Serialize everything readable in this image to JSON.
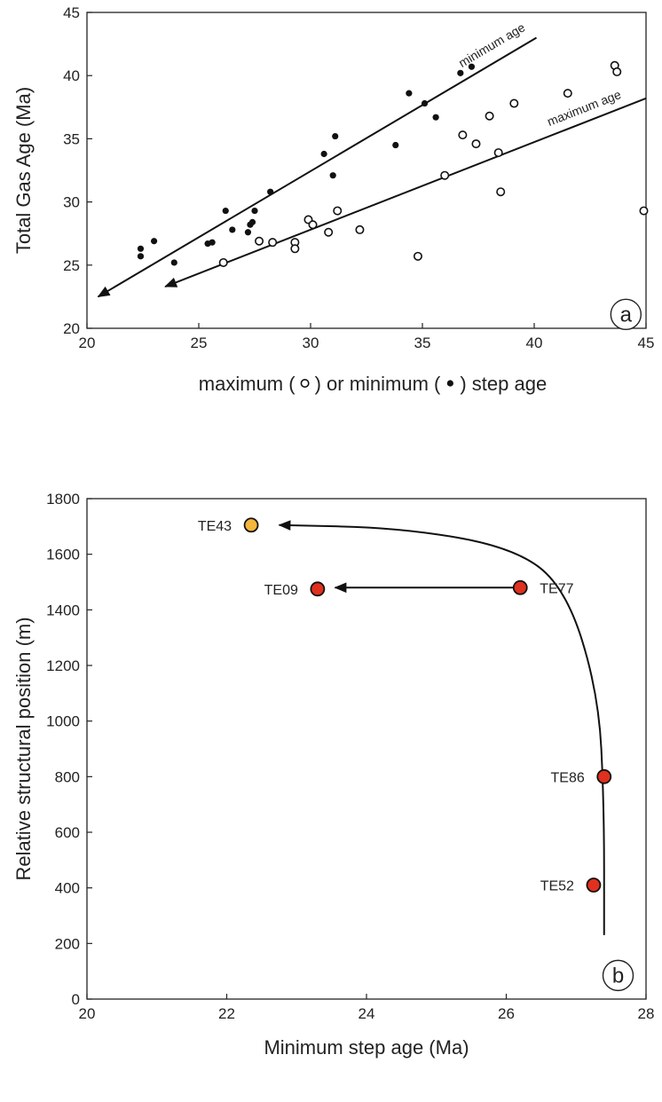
{
  "chart_data": [
    {
      "type": "scatter",
      "panel": "a",
      "xlabel_parts": [
        "maximum (",
        ") or minimum (",
        ") step age"
      ],
      "ylabel": "Total Gas Age (Ma)",
      "xlim": [
        20,
        45
      ],
      "ylim": [
        20,
        45
      ],
      "xticks": [
        20,
        25,
        30,
        35,
        40,
        45
      ],
      "yticks": [
        20,
        25,
        30,
        35,
        40,
        45
      ],
      "grid": false,
      "series": [
        {
          "marker": "filled-circle",
          "points": [
            [
              22.4,
              26.3
            ],
            [
              22.4,
              25.7
            ],
            [
              23.0,
              26.9
            ],
            [
              23.9,
              25.2
            ],
            [
              25.4,
              26.7
            ],
            [
              25.6,
              26.8
            ],
            [
              26.2,
              29.3
            ],
            [
              26.5,
              27.8
            ],
            [
              27.2,
              27.6
            ],
            [
              27.3,
              28.2
            ],
            [
              27.4,
              28.4
            ],
            [
              27.5,
              29.3
            ],
            [
              28.2,
              30.8
            ],
            [
              30.6,
              33.8
            ],
            [
              31.0,
              32.1
            ],
            [
              31.1,
              35.2
            ],
            [
              33.8,
              34.5
            ],
            [
              34.4,
              38.6
            ],
            [
              35.1,
              37.8
            ],
            [
              35.6,
              36.7
            ],
            [
              36.7,
              40.2
            ],
            [
              37.2,
              40.7
            ]
          ]
        },
        {
          "marker": "open-circle",
          "points": [
            [
              26.1,
              25.2
            ],
            [
              27.7,
              26.9
            ],
            [
              28.3,
              26.8
            ],
            [
              29.3,
              26.8
            ],
            [
              29.3,
              26.3
            ],
            [
              29.9,
              28.6
            ],
            [
              30.1,
              28.2
            ],
            [
              30.8,
              27.6
            ],
            [
              31.2,
              29.3
            ],
            [
              32.2,
              27.8
            ],
            [
              34.8,
              25.7
            ],
            [
              36.0,
              32.1
            ],
            [
              36.8,
              35.3
            ],
            [
              37.4,
              34.6
            ],
            [
              38.0,
              36.8
            ],
            [
              38.4,
              33.9
            ],
            [
              38.5,
              30.8
            ],
            [
              39.1,
              37.8
            ],
            [
              41.5,
              38.6
            ],
            [
              43.6,
              40.8
            ],
            [
              43.7,
              40.3
            ],
            [
              44.9,
              29.3
            ]
          ]
        }
      ],
      "trend_lines": [
        {
          "label": "minimum age",
          "from": [
            40.1,
            43.0
          ],
          "to": [
            20.5,
            22.5
          ]
        },
        {
          "label": "maximum age",
          "from": [
            45.0,
            38.2
          ],
          "to": [
            23.5,
            23.3
          ]
        }
      ],
      "panel_label": "a"
    },
    {
      "type": "scatter",
      "panel": "b",
      "xlabel": "Minimum step age (Ma)",
      "ylabel": "Relative structural position (m)",
      "xlim": [
        20,
        28
      ],
      "ylim": [
        0,
        1800
      ],
      "xticks": [
        20,
        22,
        24,
        26,
        28
      ],
      "yticks": [
        0,
        200,
        400,
        600,
        800,
        1000,
        1200,
        1400,
        1600,
        1800
      ],
      "grid": false,
      "points": [
        {
          "label": "TE43",
          "x": 22.35,
          "y": 1705,
          "color": "#f4b63b"
        },
        {
          "label": "TE09",
          "x": 23.3,
          "y": 1475,
          "color": "#e0301e"
        },
        {
          "label": "TE77",
          "x": 26.2,
          "y": 1480,
          "color": "#e0301e"
        },
        {
          "label": "TE86",
          "x": 27.4,
          "y": 800,
          "color": "#e0301e"
        },
        {
          "label": "TE52",
          "x": 27.25,
          "y": 410,
          "color": "#e0301e"
        }
      ],
      "curve": [
        [
          27.4,
          230
        ],
        [
          27.4,
          700
        ],
        [
          27.32,
          1100
        ],
        [
          26.85,
          1480
        ],
        [
          26.1,
          1625
        ],
        [
          24.5,
          1695
        ],
        [
          22.75,
          1705
        ]
      ],
      "arrows": [
        {
          "from": [
            26.2,
            1480
          ],
          "to": [
            23.55,
            1480
          ]
        }
      ],
      "panel_label": "b"
    }
  ]
}
